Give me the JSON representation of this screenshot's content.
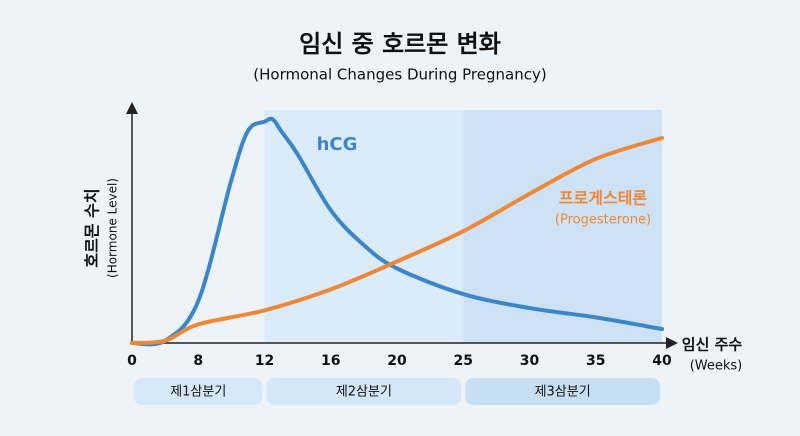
{
  "chart_data": {
    "type": "line",
    "title": "임신 중 호르몬 변화",
    "subtitle": "(Hormonal Changes During Pregnancy)",
    "y_label": "호르몬 수치",
    "y_label_sub": "(Hormone Level)",
    "x_label": "임신 주수",
    "x_label_sub": "(Weeks)",
    "xlim": [
      0,
      40
    ],
    "xticks": [
      0,
      8,
      12,
      16,
      20,
      25,
      30,
      35,
      40
    ],
    "ylim": [
      0,
      100
    ],
    "trimesters": [
      {
        "label": "제1삼분기",
        "range": [
          0,
          12
        ],
        "color": "#eef3f8"
      },
      {
        "label": "제2삼분기",
        "range": [
          12,
          25
        ],
        "color": "#dcebf8"
      },
      {
        "label": "제3삼분기",
        "range": [
          25,
          40
        ],
        "color": "#cde3f5"
      }
    ],
    "series": [
      {
        "name": "hCG",
        "color": "#3b86c9",
        "x": [
          0,
          4,
          8,
          10,
          11,
          12,
          12.5,
          13,
          14,
          16,
          18,
          20,
          25,
          30,
          35,
          40
        ],
        "values": [
          0,
          1,
          18,
          70,
          91,
          95,
          96,
          91,
          81,
          57,
          42,
          32,
          21,
          15,
          11,
          6
        ]
      },
      {
        "name": "프로게스테론",
        "annotation": "(Progesterone)",
        "color": "#ef8736",
        "x": [
          0,
          4,
          8,
          12,
          16,
          20,
          25,
          30,
          35,
          40
        ],
        "values": [
          0,
          1,
          8,
          14,
          23,
          35,
          48,
          64,
          79,
          88
        ]
      }
    ]
  }
}
